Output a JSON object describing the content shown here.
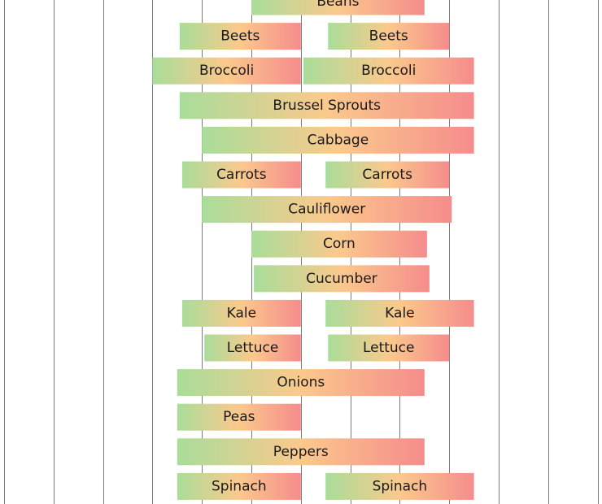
{
  "chart_data": {
    "type": "bar",
    "subtype": "horizontal-floating-gantt",
    "title": "",
    "xlabel": "",
    "ylabel": "",
    "x_unit": "grid column",
    "xlim": [
      0,
      12
    ],
    "grid": true,
    "gradient_colors": [
      "#a9dd9a",
      "#fbc98c",
      "#f58c8c"
    ],
    "bars": [
      {
        "label": "Beans",
        "row": 0,
        "start": 5.0,
        "end": 8.5
      },
      {
        "label": "Beets",
        "row": 1,
        "start": 3.55,
        "end": 6.0
      },
      {
        "label": "Beets",
        "row": 1,
        "start": 6.55,
        "end": 9.0
      },
      {
        "label": "Broccoli",
        "row": 2,
        "start": 3.0,
        "end": 6.0
      },
      {
        "label": "Broccoli",
        "row": 2,
        "start": 6.05,
        "end": 9.5
      },
      {
        "label": "Brussel Sprouts",
        "row": 3,
        "start": 3.55,
        "end": 9.5
      },
      {
        "label": "Cabbage",
        "row": 4,
        "start": 4.0,
        "end": 9.5
      },
      {
        "label": "Carrots",
        "row": 5,
        "start": 3.6,
        "end": 6.0
      },
      {
        "label": "Carrots",
        "row": 5,
        "start": 6.5,
        "end": 9.0
      },
      {
        "label": "Cauliflower",
        "row": 6,
        "start": 4.0,
        "end": 9.05
      },
      {
        "label": "Corn",
        "row": 7,
        "start": 5.0,
        "end": 8.55
      },
      {
        "label": "Cucumber",
        "row": 8,
        "start": 5.05,
        "end": 8.6
      },
      {
        "label": "Kale",
        "row": 9,
        "start": 3.6,
        "end": 6.0
      },
      {
        "label": "Kale",
        "row": 9,
        "start": 6.5,
        "end": 9.5
      },
      {
        "label": "Lettuce",
        "row": 10,
        "start": 4.05,
        "end": 6.0
      },
      {
        "label": "Lettuce",
        "row": 10,
        "start": 6.55,
        "end": 9.0
      },
      {
        "label": "Onions",
        "row": 11,
        "start": 3.5,
        "end": 8.5
      },
      {
        "label": "Peas",
        "row": 12,
        "start": 3.5,
        "end": 6.0
      },
      {
        "label": "Peppers",
        "row": 13,
        "start": 3.5,
        "end": 8.5
      },
      {
        "label": "Spinach",
        "row": 14,
        "start": 3.5,
        "end": 6.0
      },
      {
        "label": "Spinach",
        "row": 14,
        "start": 6.5,
        "end": 9.5
      }
    ]
  }
}
